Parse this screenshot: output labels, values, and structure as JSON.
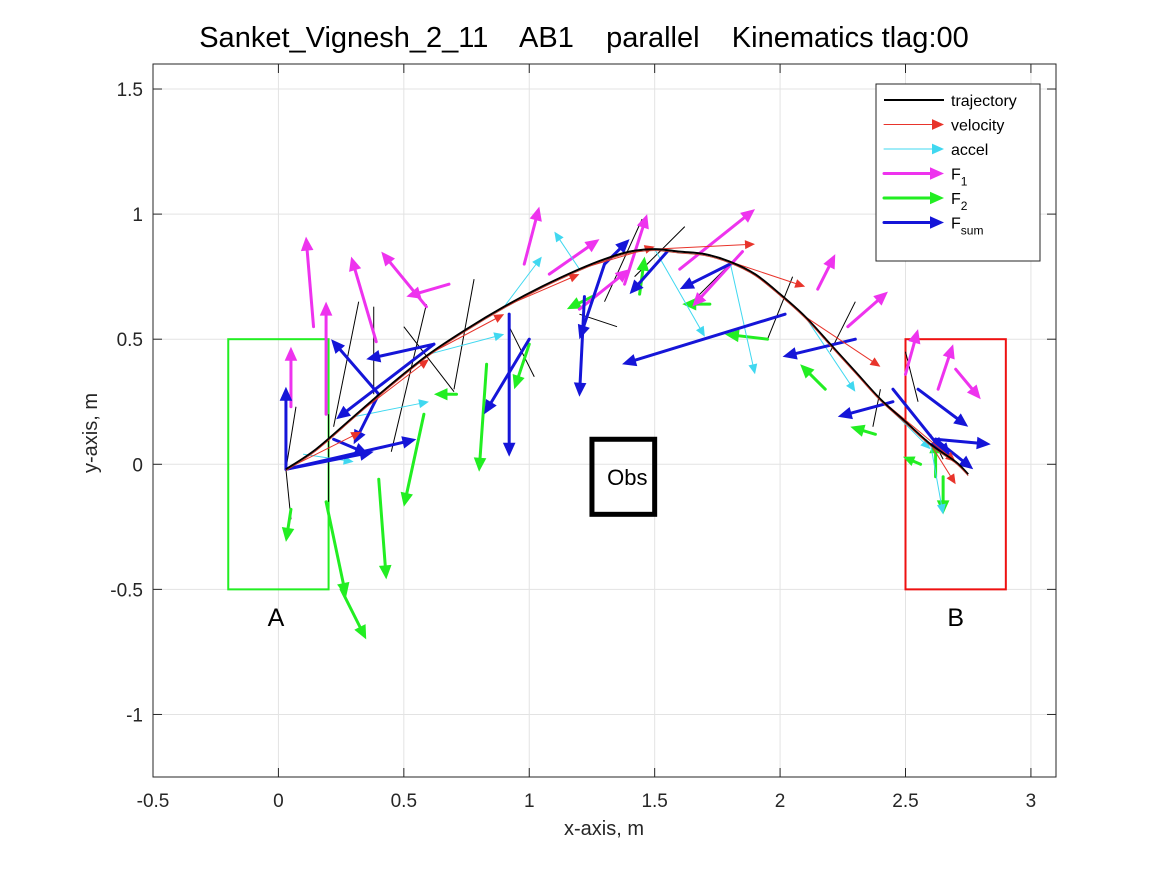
{
  "chart_data": {
    "type": "line",
    "title": "Sanket_Vignesh_2_11    AB1    parallel    Kinematics tlag:00",
    "xlabel": "x-axis, m",
    "ylabel": "y-axis, m",
    "xlim": [
      -0.5,
      3.1
    ],
    "ylim": [
      -1.25,
      1.6
    ],
    "xticks": [
      -0.5,
      0,
      0.5,
      1,
      1.5,
      2,
      2.5,
      3
    ],
    "xtick_labels": [
      "-0.5",
      "0",
      "0.5",
      "1",
      "1.5",
      "2",
      "2.5",
      "3"
    ],
    "yticks": [
      -1,
      -0.5,
      0,
      0.5,
      1,
      1.5
    ],
    "ytick_labels": [
      "-1",
      "-0.5",
      "0",
      "0.5",
      "1",
      "1.5"
    ],
    "grid": true,
    "legend_position": "top-right",
    "legend": [
      {
        "label": "trajectory",
        "sub": "",
        "color": "#000000",
        "style": "line"
      },
      {
        "label": "velocity",
        "sub": "",
        "color": "#e8342b",
        "style": "arrow-thin"
      },
      {
        "label": "accel",
        "sub": "",
        "color": "#40d8f0",
        "style": "arrow-thin"
      },
      {
        "label": "F",
        "sub": "1",
        "color": "#ee33ee",
        "style": "arrow-thick"
      },
      {
        "label": "F",
        "sub": "2",
        "color": "#22ee22",
        "style": "arrow-thick"
      },
      {
        "label": "F",
        "sub": "sum",
        "color": "#1515d8",
        "style": "arrow-thick"
      }
    ],
    "regions": [
      {
        "label": "A",
        "x": [
          -0.2,
          0.2
        ],
        "y": [
          -0.5,
          0.5
        ],
        "color": "#22ee22",
        "label_at": [
          -0.01,
          -0.61
        ]
      },
      {
        "label": "B",
        "x": [
          2.5,
          2.9
        ],
        "y": [
          -0.5,
          0.5
        ],
        "color": "#ee1111",
        "label_at": [
          2.7,
          -0.61
        ]
      }
    ],
    "obstacle": {
      "label": "Obs",
      "x": [
        1.25,
        1.5
      ],
      "y": [
        -0.2,
        0.1
      ],
      "color": "#000000"
    },
    "trajectory": {
      "x": [
        0.03,
        0.15,
        0.3,
        0.45,
        0.6,
        0.75,
        0.9,
        1.05,
        1.2,
        1.3,
        1.4,
        1.5,
        1.6,
        1.7,
        1.8,
        1.9,
        2.0,
        2.1,
        2.2,
        2.3,
        2.4,
        2.5,
        2.6,
        2.7,
        2.75
      ],
      "y": [
        -0.02,
        0.06,
        0.19,
        0.32,
        0.44,
        0.54,
        0.63,
        0.71,
        0.78,
        0.82,
        0.85,
        0.86,
        0.85,
        0.84,
        0.81,
        0.76,
        0.68,
        0.59,
        0.48,
        0.37,
        0.26,
        0.17,
        0.08,
        0.01,
        -0.04
      ]
    },
    "series": [
      {
        "name": "velocity",
        "color": "#e8342b",
        "vectors": [
          [
            0.03,
            -0.02,
            0.3,
            0.15
          ],
          [
            0.3,
            0.19,
            0.3,
            0.23
          ],
          [
            0.6,
            0.44,
            0.3,
            0.16
          ],
          [
            0.9,
            0.63,
            0.3,
            0.13
          ],
          [
            1.2,
            0.78,
            0.3,
            0.09
          ],
          [
            1.5,
            0.86,
            0.4,
            0.02
          ],
          [
            1.8,
            0.81,
            0.3,
            -0.1
          ],
          [
            2.1,
            0.59,
            0.3,
            -0.2
          ],
          [
            2.4,
            0.26,
            0.3,
            -0.25
          ],
          [
            2.6,
            0.08,
            0.1,
            -0.16
          ]
        ]
      },
      {
        "name": "accel",
        "color": "#40d8f0",
        "vectors": [
          [
            0.1,
            0.04,
            0.2,
            -0.03
          ],
          [
            0.3,
            0.19,
            0.3,
            0.06
          ],
          [
            0.6,
            0.44,
            0.3,
            0.08
          ],
          [
            0.9,
            0.63,
            0.15,
            0.2
          ],
          [
            1.2,
            0.78,
            -0.1,
            0.15
          ],
          [
            1.5,
            0.86,
            0.2,
            -0.35
          ],
          [
            1.8,
            0.81,
            0.1,
            -0.45
          ],
          [
            2.1,
            0.59,
            0.2,
            -0.3
          ],
          [
            2.4,
            0.26,
            0.2,
            -0.2
          ],
          [
            2.6,
            0.08,
            0.05,
            -0.28
          ]
        ]
      },
      {
        "name": "F1",
        "color": "#ee33ee",
        "vectors": [
          [
            0.05,
            0.23,
            0.0,
            0.24
          ],
          [
            0.14,
            0.55,
            -0.03,
            0.36
          ],
          [
            0.19,
            0.2,
            0.0,
            0.45
          ],
          [
            0.39,
            0.49,
            -0.1,
            0.34
          ],
          [
            0.59,
            0.63,
            -0.18,
            0.22
          ],
          [
            0.68,
            0.72,
            -0.17,
            -0.05
          ],
          [
            0.98,
            0.8,
            0.06,
            0.23
          ],
          [
            1.08,
            0.76,
            0.2,
            0.14
          ],
          [
            1.2,
            0.62,
            0.2,
            0.16
          ],
          [
            1.38,
            0.72,
            0.09,
            0.28
          ],
          [
            1.6,
            0.78,
            0.3,
            0.24
          ],
          [
            1.85,
            0.85,
            -0.2,
            -0.22
          ],
          [
            2.15,
            0.7,
            0.07,
            0.14
          ],
          [
            2.27,
            0.55,
            0.16,
            0.14
          ],
          [
            2.5,
            0.36,
            0.05,
            0.18
          ],
          [
            2.63,
            0.3,
            0.06,
            0.18
          ],
          [
            2.7,
            0.38,
            0.1,
            -0.12
          ]
        ]
      },
      {
        "name": "F2",
        "color": "#22ee22",
        "vectors": [
          [
            0.05,
            -0.18,
            -0.02,
            -0.13
          ],
          [
            0.19,
            -0.15,
            0.08,
            -0.38
          ],
          [
            0.25,
            -0.5,
            0.1,
            -0.2
          ],
          [
            0.4,
            -0.06,
            0.03,
            -0.4
          ],
          [
            0.58,
            0.2,
            -0.08,
            -0.37
          ],
          [
            0.71,
            0.28,
            -0.09,
            0.0
          ],
          [
            0.83,
            0.4,
            -0.03,
            -0.43
          ],
          [
            1.0,
            0.48,
            -0.06,
            -0.18
          ],
          [
            1.25,
            0.67,
            -0.1,
            -0.05
          ],
          [
            1.44,
            0.68,
            0.02,
            0.15
          ],
          [
            1.72,
            0.64,
            -0.11,
            0.0
          ],
          [
            1.95,
            0.5,
            -0.17,
            0.02
          ],
          [
            2.18,
            0.3,
            -0.1,
            0.1
          ],
          [
            2.38,
            0.12,
            -0.1,
            0.03
          ],
          [
            2.56,
            0.0,
            -0.07,
            0.03
          ],
          [
            2.65,
            -0.05,
            0.0,
            -0.15
          ],
          [
            2.62,
            -0.05,
            0.0,
            0.15
          ]
        ]
      },
      {
        "name": "Fsum",
        "color": "#1515d8",
        "vectors": [
          [
            0.03,
            -0.02,
            0.0,
            0.33
          ],
          [
            0.03,
            -0.02,
            0.52,
            0.12
          ],
          [
            0.03,
            -0.02,
            0.35,
            0.07
          ],
          [
            0.22,
            0.1,
            0.14,
            -0.06
          ],
          [
            0.4,
            0.28,
            -0.19,
            0.22
          ],
          [
            0.4,
            0.28,
            -0.1,
            -0.2
          ],
          [
            0.62,
            0.48,
            -0.27,
            -0.06
          ],
          [
            0.62,
            0.48,
            -0.39,
            -0.3
          ],
          [
            0.92,
            0.6,
            0.0,
            -0.57
          ],
          [
            1.0,
            0.5,
            -0.18,
            -0.3
          ],
          [
            1.22,
            0.67,
            -0.02,
            -0.4
          ],
          [
            1.3,
            0.8,
            -0.1,
            -0.3
          ],
          [
            1.3,
            0.8,
            0.1,
            0.1
          ],
          [
            1.55,
            0.85,
            -0.15,
            -0.17
          ],
          [
            1.8,
            0.8,
            -0.2,
            -0.1
          ],
          [
            2.02,
            0.6,
            -0.65,
            -0.2
          ],
          [
            2.3,
            0.5,
            -0.29,
            -0.07
          ],
          [
            2.45,
            0.25,
            -0.22,
            -0.06
          ],
          [
            2.45,
            0.3,
            0.2,
            -0.25
          ],
          [
            2.55,
            0.3,
            0.2,
            -0.15
          ],
          [
            2.62,
            0.1,
            0.22,
            -0.02
          ],
          [
            2.62,
            0.1,
            0.15,
            -0.12
          ],
          [
            2.62,
            0.1,
            0.06,
            -0.07
          ]
        ]
      },
      {
        "name": "links",
        "color": "#000000",
        "vectors": [
          [
            0.03,
            -0.02,
            0.02,
            -0.2
          ],
          [
            0.03,
            -0.02,
            0.04,
            0.25
          ],
          [
            0.2,
            0.2,
            0.0,
            -0.35
          ],
          [
            0.22,
            0.15,
            0.1,
            0.5
          ],
          [
            0.38,
            0.28,
            0.0,
            0.35
          ],
          [
            0.45,
            0.05,
            0.14,
            0.59
          ],
          [
            0.5,
            0.55,
            0.2,
            -0.26
          ],
          [
            0.7,
            0.3,
            0.08,
            0.44
          ],
          [
            0.92,
            0.55,
            0.1,
            -0.2
          ],
          [
            1.2,
            0.6,
            0.15,
            -0.05
          ],
          [
            1.3,
            0.65,
            0.15,
            0.33
          ],
          [
            1.42,
            0.75,
            0.2,
            0.2
          ],
          [
            1.65,
            0.65,
            0.15,
            0.15
          ],
          [
            1.95,
            0.5,
            0.1,
            0.25
          ],
          [
            2.2,
            0.45,
            0.1,
            0.2
          ],
          [
            2.4,
            0.3,
            -0.03,
            -0.15
          ],
          [
            2.55,
            0.25,
            -0.05,
            0.2
          ],
          [
            2.6,
            0.12,
            0.05,
            -0.1
          ]
        ]
      }
    ]
  }
}
